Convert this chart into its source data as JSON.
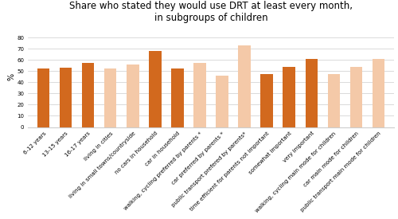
{
  "title": "Share who stated they would use DRT at least every month,\nin subgroups of children",
  "ylabel": "%",
  "ylim": [
    0,
    90
  ],
  "yticks": [
    0,
    10,
    20,
    30,
    40,
    50,
    60,
    70,
    80
  ],
  "categories": [
    "6-12 years",
    "13-15 years",
    "16-17 years",
    "living in cities",
    "living in small towns/countryside",
    "no cars in household",
    "car in household",
    "walking, cycling preferred by parents *",
    "car preferred by parents *",
    "public transport prefered by parents*",
    "time efficient for parents not important",
    "somewhat important",
    "very important",
    "walking, cycling main mode for children",
    "car main mode for children",
    "public transport main mode for children"
  ],
  "values": [
    52,
    53,
    57,
    52,
    56,
    68,
    52,
    57,
    46,
    73,
    47,
    54,
    61,
    47,
    54,
    61
  ],
  "colors": [
    "#d2691e",
    "#d2691e",
    "#d2691e",
    "#f4c9a8",
    "#f4c9a8",
    "#d2691e",
    "#d2691e",
    "#f4c9a8",
    "#f4c9a8",
    "#f4c9a8",
    "#d2691e",
    "#d2691e",
    "#d2691e",
    "#f4c9a8",
    "#f4c9a8",
    "#f4c9a8"
  ],
  "title_fontsize": 8.5,
  "tick_fontsize": 5.0,
  "ylabel_fontsize": 7,
  "bar_width": 0.55
}
